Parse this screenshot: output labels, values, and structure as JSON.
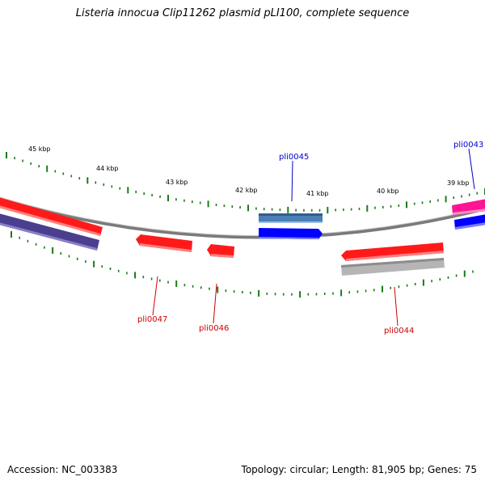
{
  "title": "Listeria innocua Clip11262 plasmid pLI100, complete sequence",
  "footer": {
    "accession": "Accession: NC_003383",
    "topology": "Topology: circular; Length: 81,905 bp; Genes: 75"
  },
  "scale_labels": [
    "45 kbp",
    "44 kbp",
    "43 kbp",
    "42 kbp",
    "41 kbp",
    "40 kbp",
    "39 kbp"
  ],
  "gene_labels": [
    {
      "name": "pli0045",
      "color": "#0000cc",
      "strand": "forward"
    },
    {
      "name": "pli0043",
      "color": "#0000cc",
      "strand": "forward"
    },
    {
      "name": "pli0047",
      "color": "#cc0000",
      "strand": "reverse"
    },
    {
      "name": "pli0046",
      "color": "#cc0000",
      "strand": "reverse"
    },
    {
      "name": "pli0044",
      "color": "#cc0000",
      "strand": "reverse"
    }
  ],
  "colors": {
    "backbone": "#8a8a8a",
    "tick": "#1a7a1a",
    "red_feature": "#ff1a1a",
    "blue_feature": "#0000ff",
    "steelblue_feature": "#4a7fb5",
    "navy_feature": "#4a3f8f",
    "magenta_feature": "#ff1493",
    "grey_feature": "#b5b5b5"
  }
}
